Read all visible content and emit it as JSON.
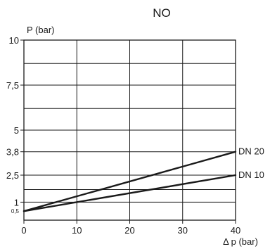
{
  "chart_data": {
    "type": "line",
    "title": "NO",
    "ylabel": "P (bar)",
    "xlabel": "Δ p (bar)",
    "xlim": [
      0,
      40
    ],
    "ylim": [
      0,
      10
    ],
    "x_ticks": [
      {
        "value": 0,
        "label": "0"
      },
      {
        "value": 10,
        "label": "10"
      },
      {
        "value": 20,
        "label": "20"
      },
      {
        "value": 30,
        "label": "30"
      },
      {
        "value": 40,
        "label": "40"
      }
    ],
    "y_ticks": [
      {
        "value": 0.5,
        "label": "0,5",
        "small": true
      },
      {
        "value": 1,
        "label": "1"
      },
      {
        "value": 2.5,
        "label": "2,5"
      },
      {
        "value": 3.8,
        "label": "3,8"
      },
      {
        "value": 5,
        "label": "5"
      },
      {
        "value": 7.5,
        "label": "7,5"
      },
      {
        "value": 10,
        "label": "10"
      }
    ],
    "grid": true,
    "grid_x": [
      10,
      20,
      30
    ],
    "grid_y": [
      1,
      1.7,
      2.5,
      3.8,
      5,
      6.2,
      7.5,
      8.7
    ],
    "series": [
      {
        "name": "DN 20",
        "x": [
          0,
          40
        ],
        "y": [
          0.5,
          3.8
        ],
        "color": "#1a1a1a"
      },
      {
        "name": "DN 10",
        "x": [
          0,
          40
        ],
        "y": [
          0.5,
          2.5
        ],
        "color": "#1a1a1a"
      }
    ]
  }
}
